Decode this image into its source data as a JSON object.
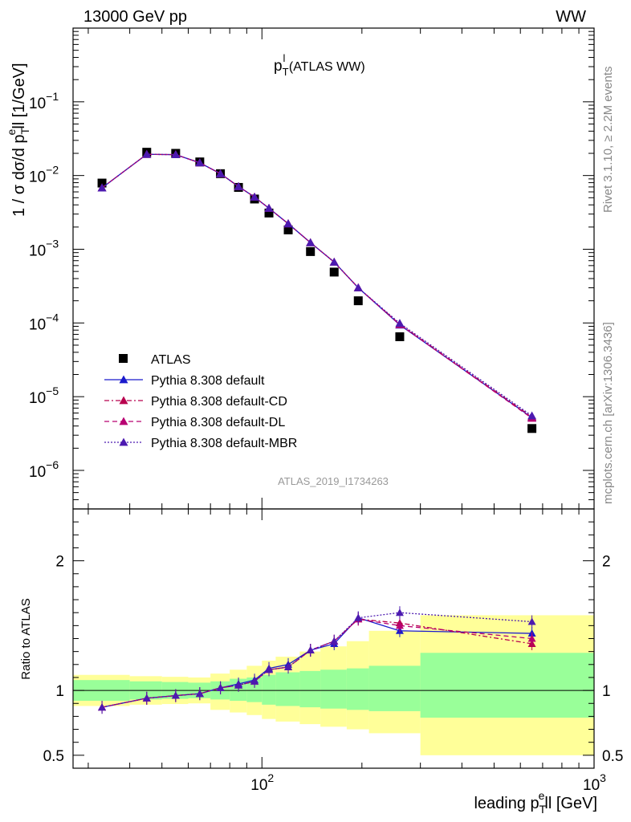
{
  "header": {
    "left": "13000 GeV pp",
    "right": "WW"
  },
  "side_labels": {
    "rivet": "Rivet 3.1.10, ≥ 2.2M events",
    "mcplots": "mcplots.cern.ch [arXiv:1306.3436]"
  },
  "chart_data": [
    {
      "type": "line",
      "title_main": "p",
      "title_sup": "l",
      "title_sub": "T",
      "title_rest": " (ATLAS WW)",
      "watermark": "ATLAS_2019_I1734263",
      "ylabel": {
        "p1": "1 / σ  dσ/d p",
        "sub": "T",
        "sup": "e",
        "p2": "ll [1/GeV]"
      },
      "x_scale": "log",
      "y_scale": "log",
      "xlim": [
        27,
        1000
      ],
      "ylim": [
        3e-07,
        1.0
      ],
      "y_ticks": [
        {
          "value": 1e-06,
          "base": "10",
          "exp": "−6"
        },
        {
          "value": 1e-05,
          "base": "10",
          "exp": "−5"
        },
        {
          "value": 0.0001,
          "base": "10",
          "exp": "−4"
        },
        {
          "value": 0.001,
          "base": "10",
          "exp": "−3"
        },
        {
          "value": 0.01,
          "base": "10",
          "exp": "−2"
        },
        {
          "value": 0.1,
          "base": "10",
          "exp": "−1"
        }
      ],
      "legend_position": "bottom-left",
      "x": [
        33,
        45,
        55,
        65,
        75,
        85,
        95,
        105,
        120,
        140,
        165,
        195,
        260,
        650
      ],
      "series": [
        {
          "name": "ATLAS",
          "marker": "square",
          "color": "#000000",
          "style": "none",
          "values": [
            0.0079,
            0.0207,
            0.02,
            0.0153,
            0.0106,
            0.0069,
            0.0048,
            0.0031,
            0.00183,
            0.00093,
            0.00049,
            0.0002,
            6.5e-05,
            3.7e-06
          ]
        },
        {
          "name": "Pythia 8.308 default",
          "marker": "triangle",
          "color": "#1a1acc",
          "style": "solid",
          "values": [
            0.0068,
            0.0194,
            0.0192,
            0.0149,
            0.0106,
            0.0071,
            0.0051,
            0.0036,
            0.00222,
            0.00123,
            0.00067,
            0.0003,
            9.4e-05,
            5.2e-06
          ]
        },
        {
          "name": "Pythia 8.308 default-CD",
          "marker": "triangle",
          "color": "#b8004e",
          "style": "dashdot",
          "values": [
            0.0068,
            0.0194,
            0.0192,
            0.0149,
            0.0106,
            0.0071,
            0.0051,
            0.0036,
            0.00222,
            0.00123,
            0.00067,
            0.0003,
            9.6e-05,
            5.3e-06
          ]
        },
        {
          "name": "Pythia 8.308 default-DL",
          "marker": "triangle",
          "color": "#b80072",
          "style": "dashed",
          "values": [
            0.0068,
            0.0194,
            0.0192,
            0.0149,
            0.0106,
            0.0071,
            0.0051,
            0.0036,
            0.00222,
            0.00123,
            0.00067,
            0.0003,
            9.5e-05,
            5.1e-06
          ]
        },
        {
          "name": "Pythia 8.308 default-MBR",
          "marker": "triangle",
          "color": "#4c1ab0",
          "style": "dotted",
          "values": [
            0.0068,
            0.0194,
            0.0192,
            0.0149,
            0.0106,
            0.0071,
            0.0051,
            0.0036,
            0.00222,
            0.00123,
            0.00067,
            0.0003,
            9.9e-05,
            5.5e-06
          ]
        }
      ]
    },
    {
      "type": "line",
      "ylabel": "Ratio to ATLAS",
      "xlabel": {
        "p1": "leading p",
        "sub": "T",
        "sup": "e",
        "p2": "ll [GeV]"
      },
      "x_scale": "log",
      "xlim": [
        27,
        1000
      ],
      "ylim": [
        0.4,
        2.4
      ],
      "y_ticks": [
        {
          "value": 0.5,
          "label": "0.5"
        },
        {
          "value": 1,
          "label": "1"
        },
        {
          "value": 2,
          "label": "2"
        }
      ],
      "x_ticks": [
        {
          "value": 100,
          "base": "10",
          "exp": "2"
        },
        {
          "value": 1000,
          "base": "10",
          "exp": "3"
        }
      ],
      "reference_line": 1,
      "bin_edges": [
        27,
        40,
        50,
        60,
        70,
        80,
        90,
        100,
        110,
        130,
        150,
        180,
        210,
        300,
        1000
      ],
      "band_inner": [
        [
          0.92,
          1.08
        ],
        [
          0.93,
          1.07
        ],
        [
          0.935,
          1.065
        ],
        [
          0.94,
          1.06
        ],
        [
          0.93,
          1.07
        ],
        [
          0.92,
          1.09
        ],
        [
          0.91,
          1.1
        ],
        [
          0.89,
          1.12
        ],
        [
          0.88,
          1.14
        ],
        [
          0.87,
          1.15
        ],
        [
          0.86,
          1.16
        ],
        [
          0.85,
          1.17
        ],
        [
          0.84,
          1.19
        ],
        [
          0.79,
          1.29
        ]
      ],
      "band_outer": [
        [
          0.88,
          1.12
        ],
        [
          0.89,
          1.11
        ],
        [
          0.895,
          1.105
        ],
        [
          0.9,
          1.1
        ],
        [
          0.85,
          1.13
        ],
        [
          0.83,
          1.16
        ],
        [
          0.81,
          1.19
        ],
        [
          0.78,
          1.23
        ],
        [
          0.76,
          1.26
        ],
        [
          0.74,
          1.3
        ],
        [
          0.72,
          1.34
        ],
        [
          0.7,
          1.38
        ],
        [
          0.67,
          1.46
        ],
        [
          0.5,
          1.58
        ]
      ],
      "x": [
        33,
        45,
        55,
        65,
        75,
        85,
        95,
        105,
        120,
        140,
        165,
        195,
        260,
        650
      ],
      "series": [
        {
          "name": "Pythia 8.308 default",
          "values": [
            0.87,
            0.94,
            0.96,
            0.975,
            1.02,
            1.05,
            1.08,
            1.17,
            1.2,
            1.31,
            1.36,
            1.56,
            1.46,
            1.44
          ]
        },
        {
          "name": "Pythia 8.308 default-CD",
          "values": [
            0.87,
            0.94,
            0.96,
            0.975,
            1.02,
            1.04,
            1.07,
            1.16,
            1.18,
            1.31,
            1.38,
            1.55,
            1.52,
            1.36
          ]
        },
        {
          "name": "Pythia 8.308 default-DL",
          "values": [
            0.87,
            0.94,
            0.96,
            0.975,
            1.02,
            1.04,
            1.07,
            1.16,
            1.18,
            1.31,
            1.38,
            1.55,
            1.5,
            1.4
          ]
        },
        {
          "name": "Pythia 8.308 default-MBR",
          "values": [
            0.87,
            0.94,
            0.96,
            0.975,
            1.02,
            1.04,
            1.07,
            1.16,
            1.18,
            1.31,
            1.38,
            1.56,
            1.6,
            1.53
          ]
        }
      ]
    }
  ]
}
